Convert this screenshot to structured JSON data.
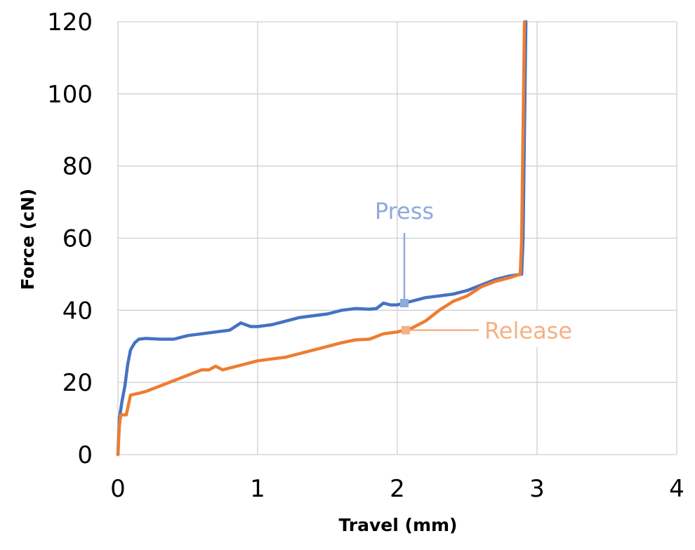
{
  "chart_data": {
    "type": "line",
    "title": "",
    "xlabel": "Travel (mm)",
    "ylabel": "Force (cN)",
    "xlim": [
      0,
      4
    ],
    "ylim": [
      0,
      120
    ],
    "x_ticks": [
      0,
      1,
      2,
      3,
      4
    ],
    "y_ticks": [
      0,
      20,
      40,
      60,
      80,
      100,
      120
    ],
    "grid": true,
    "legend": "none",
    "series": [
      {
        "color": "#4472C4",
        "points": [
          [
            0.0,
            0
          ],
          [
            0.01,
            10
          ],
          [
            0.03,
            15
          ],
          [
            0.05,
            19
          ],
          [
            0.07,
            25
          ],
          [
            0.09,
            29
          ],
          [
            0.12,
            31
          ],
          [
            0.15,
            32
          ],
          [
            0.2,
            32.2
          ],
          [
            0.3,
            32
          ],
          [
            0.4,
            32
          ],
          [
            0.5,
            33
          ],
          [
            0.6,
            33.5
          ],
          [
            0.7,
            34
          ],
          [
            0.8,
            34.5
          ],
          [
            0.88,
            36.5
          ],
          [
            0.95,
            35.5
          ],
          [
            1.0,
            35.5
          ],
          [
            1.1,
            36
          ],
          [
            1.2,
            37
          ],
          [
            1.3,
            38
          ],
          [
            1.4,
            38.5
          ],
          [
            1.5,
            39
          ],
          [
            1.6,
            40
          ],
          [
            1.7,
            40.5
          ],
          [
            1.8,
            40.3
          ],
          [
            1.85,
            40.5
          ],
          [
            1.9,
            42
          ],
          [
            1.95,
            41.5
          ],
          [
            2.0,
            41.5
          ],
          [
            2.1,
            42.5
          ],
          [
            2.2,
            43.5
          ],
          [
            2.3,
            44
          ],
          [
            2.4,
            44.5
          ],
          [
            2.5,
            45.5
          ],
          [
            2.6,
            47
          ],
          [
            2.7,
            48.5
          ],
          [
            2.8,
            49.5
          ],
          [
            2.89,
            50
          ],
          [
            2.9,
            60
          ],
          [
            2.91,
            90
          ],
          [
            2.92,
            120
          ]
        ]
      },
      {
        "color": "#ED7D31",
        "points": [
          [
            0.0,
            0
          ],
          [
            0.01,
            8
          ],
          [
            0.02,
            11
          ],
          [
            0.06,
            11
          ],
          [
            0.09,
            16.5
          ],
          [
            0.15,
            17
          ],
          [
            0.2,
            17.5
          ],
          [
            0.3,
            19
          ],
          [
            0.4,
            20.5
          ],
          [
            0.5,
            22
          ],
          [
            0.6,
            23.5
          ],
          [
            0.65,
            23.5
          ],
          [
            0.7,
            24.5
          ],
          [
            0.75,
            23.5
          ],
          [
            0.8,
            24
          ],
          [
            0.9,
            25
          ],
          [
            1.0,
            26
          ],
          [
            1.1,
            26.5
          ],
          [
            1.2,
            27
          ],
          [
            1.3,
            28
          ],
          [
            1.4,
            29
          ],
          [
            1.5,
            30
          ],
          [
            1.6,
            31
          ],
          [
            1.7,
            31.8
          ],
          [
            1.8,
            32
          ],
          [
            1.9,
            33.5
          ],
          [
            2.0,
            34
          ],
          [
            2.1,
            35
          ],
          [
            2.2,
            37
          ],
          [
            2.3,
            40
          ],
          [
            2.4,
            42.5
          ],
          [
            2.5,
            44
          ],
          [
            2.6,
            46.5
          ],
          [
            2.7,
            48
          ],
          [
            2.8,
            49
          ],
          [
            2.88,
            50
          ],
          [
            2.89,
            60
          ],
          [
            2.9,
            90
          ],
          [
            2.91,
            120
          ]
        ]
      }
    ],
    "annotations": [
      {
        "text": "Press",
        "color": "#8FAADC",
        "x": 2.05,
        "y": 42
      },
      {
        "text": "Release",
        "color": "#F4B183",
        "x": 2.06,
        "y": 34.5
      }
    ]
  }
}
